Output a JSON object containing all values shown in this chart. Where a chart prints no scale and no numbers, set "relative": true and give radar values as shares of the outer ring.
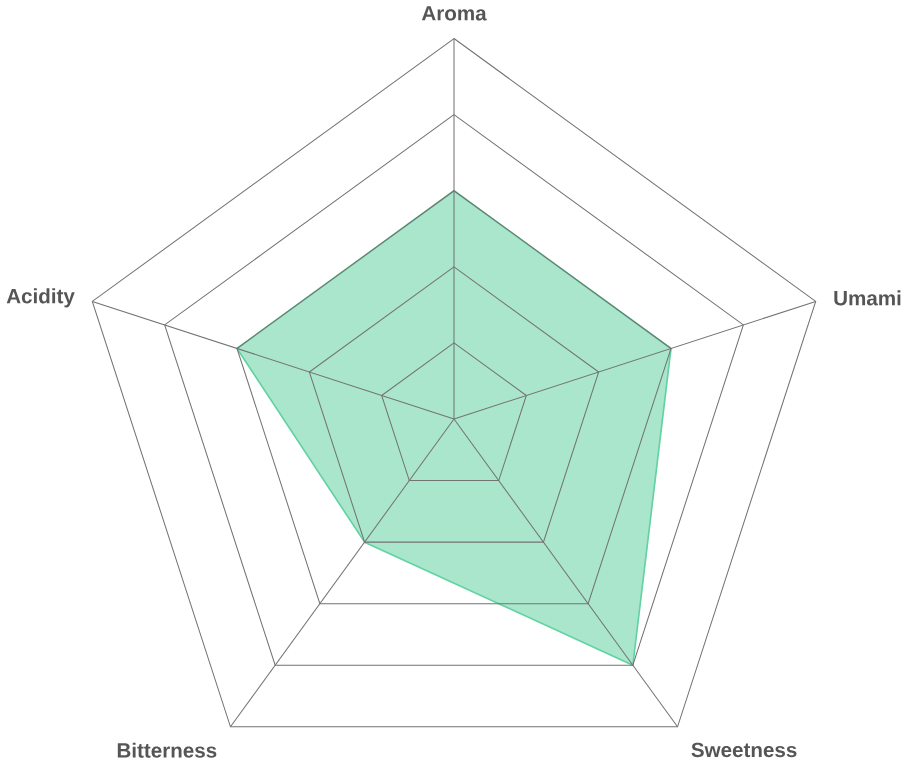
{
  "chart_data": {
    "type": "radar",
    "relative": true,
    "categories": [
      "Aroma",
      "Umami",
      "Sweetness",
      "Bitterness",
      "Acidity"
    ],
    "series": [
      {
        "color": "#62d2a2",
        "values": [
          0.6,
          0.6,
          0.8,
          0.4,
          0.6
        ]
      }
    ]
  }
}
